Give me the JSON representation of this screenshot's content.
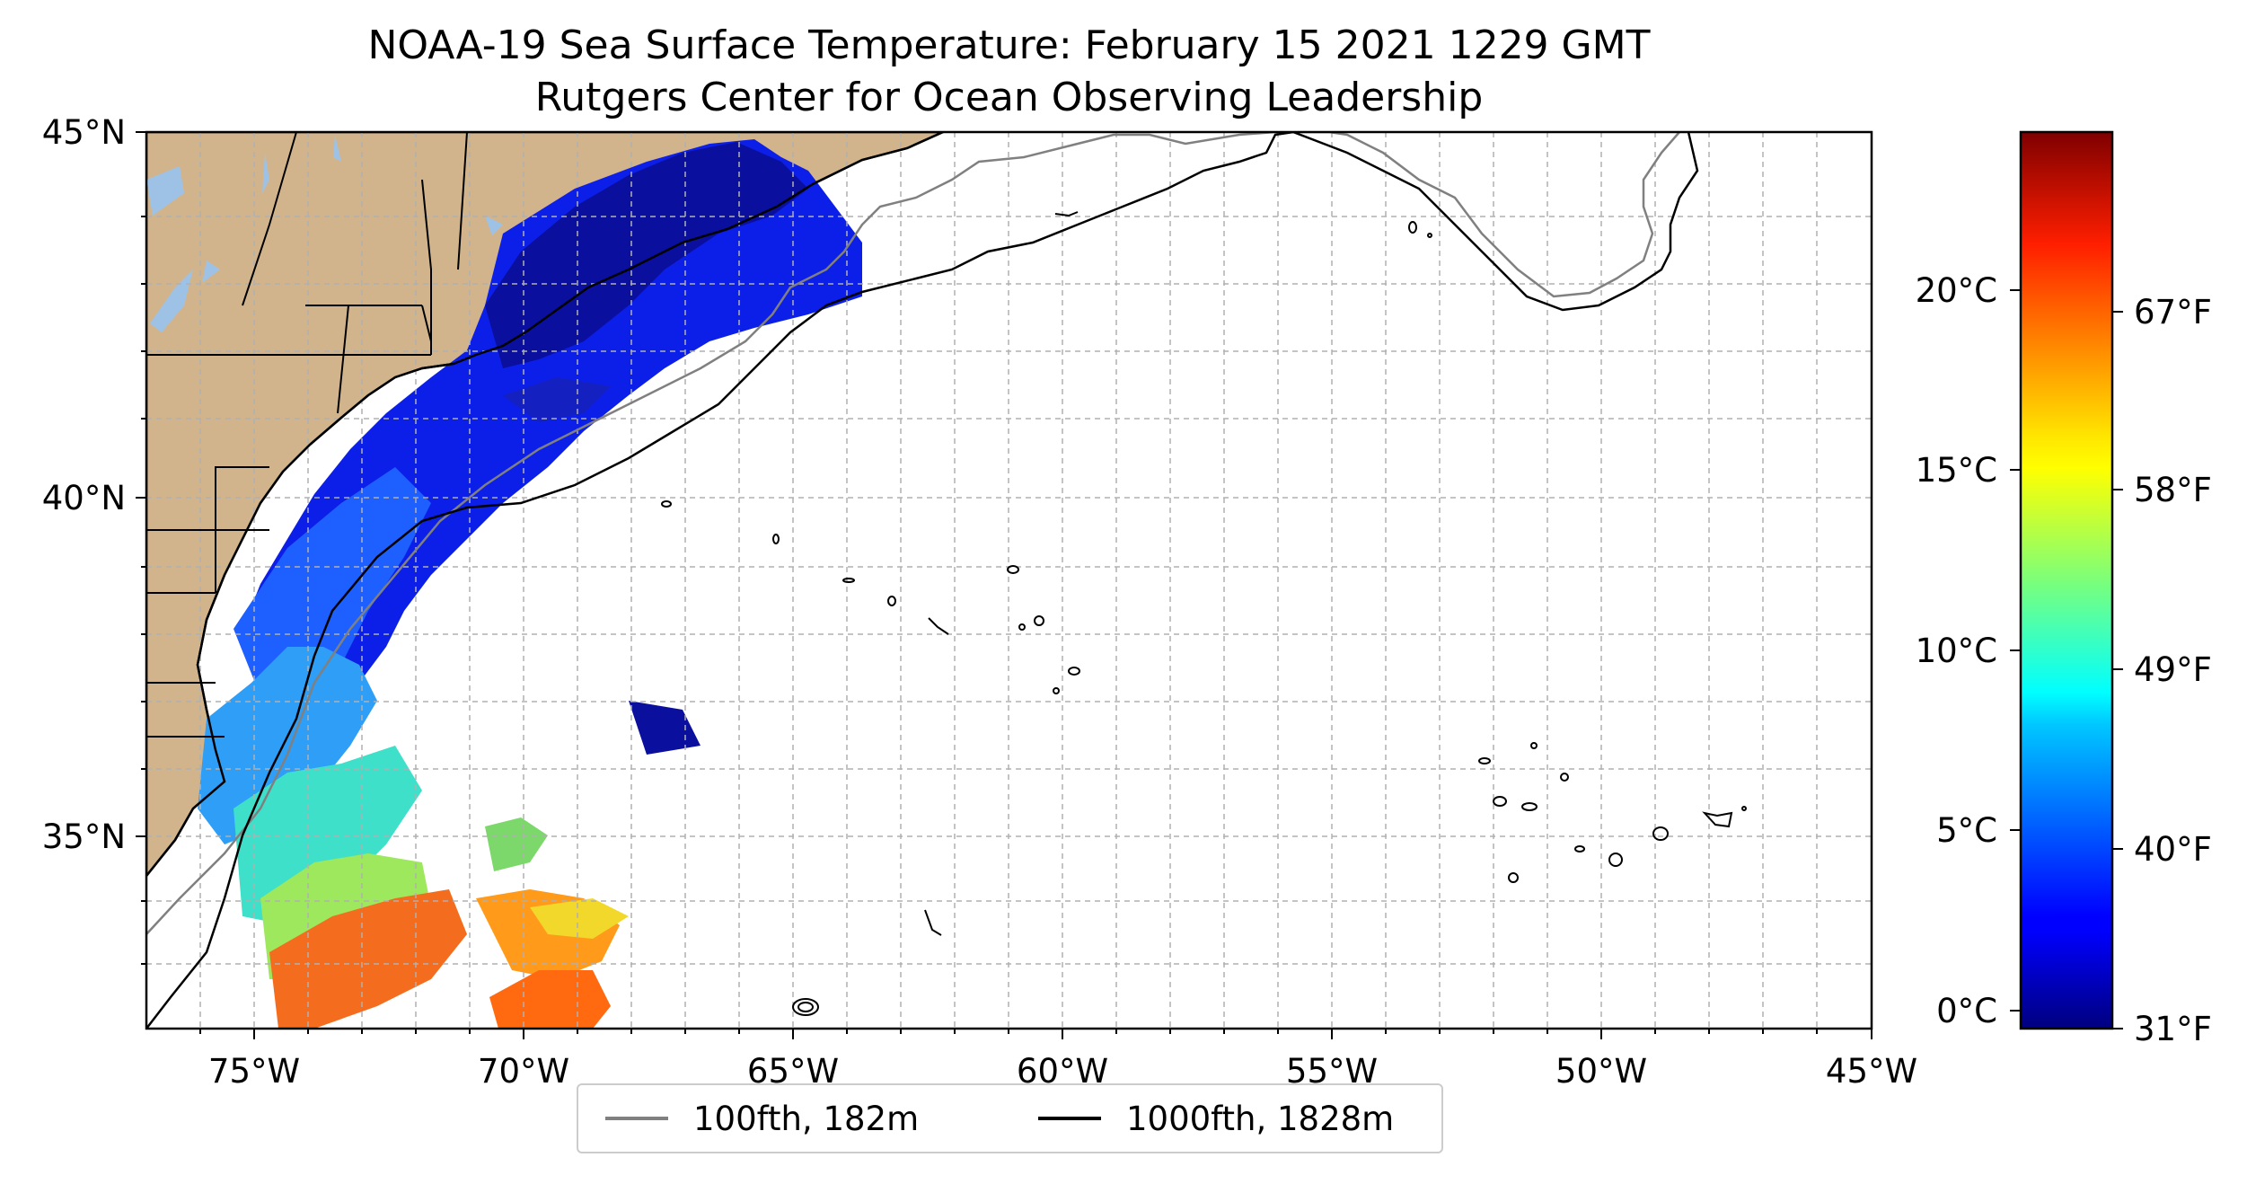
{
  "title": {
    "line1": "NOAA-19 Sea Surface Temperature: February 15 2021 1229 GMT",
    "line2": "Rutgers Center for Ocean Observing Leadership"
  },
  "map": {
    "lon_range": [
      -77,
      -45
    ],
    "lat_range": [
      31.7,
      45
    ],
    "x_ticks": [
      "75°W",
      "70°W",
      "65°W",
      "60°W",
      "55°W",
      "50°W",
      "45°W"
    ],
    "y_ticks": [
      "35°N",
      "40°N",
      "45°N"
    ],
    "land_color": "#d2b48c",
    "water_no_data_color": "#ffffff",
    "gridlines": true
  },
  "legend": {
    "items": [
      {
        "label": "100fth, 182m",
        "color": "#808080"
      },
      {
        "label": "1000fth, 1828m",
        "color": "#000000"
      }
    ]
  },
  "colorbar": {
    "colormap": "jet",
    "celsius_ticks": [
      "0°C",
      "5°C",
      "10°C",
      "15°C",
      "20°C"
    ],
    "fahrenheit_ticks": [
      "31°F",
      "40°F",
      "49°F",
      "58°F",
      "67°F"
    ]
  }
}
